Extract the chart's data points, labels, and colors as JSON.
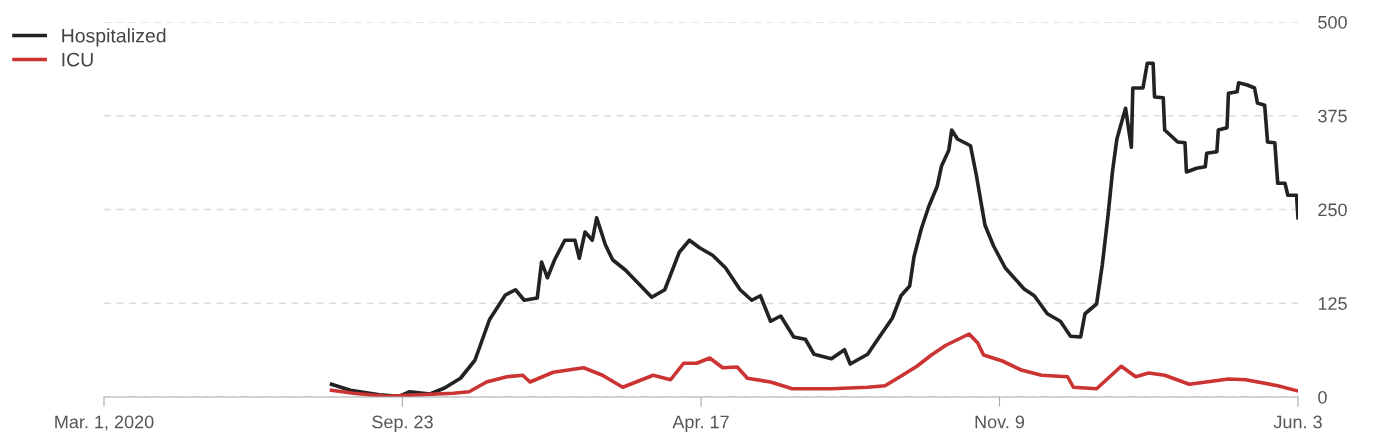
{
  "chart_data": {
    "type": "line",
    "xlim": [
      "2020-03-01",
      "2022-06-03"
    ],
    "xticks": [
      {
        "value": "2020-03-01",
        "label": "Mar. 1, 2020"
      },
      {
        "value": "2020-09-23",
        "label": "Sep. 23"
      },
      {
        "value": "2021-04-17",
        "label": "Apr. 17"
      },
      {
        "value": "2021-11-09",
        "label": "Nov. 9"
      },
      {
        "value": "2022-06-03",
        "label": "Jun. 3"
      }
    ],
    "ylim": [
      0,
      500
    ],
    "yticks": [
      0,
      125,
      250,
      375,
      500
    ],
    "grid": "y",
    "legend": "top left",
    "marker": "none",
    "line_style": "solid",
    "series": [
      {
        "name": "Hospitalized",
        "color": "#222222",
        "x": [
          "2020-08-05",
          "2020-08-18",
          "2020-09-07",
          "2020-09-21",
          "2020-09-28",
          "2020-10-12",
          "2020-10-22",
          "2020-11-02",
          "2020-11-12",
          "2020-11-22",
          "2020-12-03",
          "2020-12-10",
          "2020-12-16",
          "2020-12-25",
          "2020-12-28",
          "2021-01-01",
          "2021-01-06",
          "2021-01-13",
          "2021-01-20",
          "2021-01-23",
          "2021-01-27",
          "2021-02-01",
          "2021-02-04",
          "2021-02-10",
          "2021-02-15",
          "2021-02-24",
          "2021-03-06",
          "2021-03-14",
          "2021-03-23",
          "2021-04-02",
          "2021-04-09",
          "2021-04-16",
          "2021-04-25",
          "2021-05-04",
          "2021-05-14",
          "2021-05-22",
          "2021-05-28",
          "2021-06-04",
          "2021-06-11",
          "2021-06-20",
          "2021-06-28",
          "2021-07-04",
          "2021-07-16",
          "2021-07-25",
          "2021-07-29",
          "2021-08-10",
          "2021-08-17",
          "2021-08-27",
          "2021-09-02",
          "2021-09-08",
          "2021-09-11",
          "2021-09-16",
          "2021-09-21",
          "2021-09-27",
          "2021-09-30",
          "2021-10-05",
          "2021-10-07",
          "2021-10-11",
          "2021-10-20",
          "2021-10-24",
          "2021-10-30",
          "2021-11-05",
          "2021-11-13",
          "2021-11-26",
          "2021-12-03",
          "2021-12-12",
          "2021-12-21",
          "2021-12-28",
          "2022-01-04",
          "2022-01-07",
          "2022-01-15",
          "2022-01-19",
          "2022-01-23",
          "2022-01-26",
          "2022-01-29",
          "2022-02-04",
          "2022-02-08",
          "2022-02-09",
          "2022-02-16",
          "2022-02-19",
          "2022-02-23",
          "2022-02-24",
          "2022-03-02",
          "2022-03-03",
          "2022-03-12",
          "2022-03-17",
          "2022-03-18",
          "2022-03-25",
          "2022-03-31",
          "2022-04-01",
          "2022-04-08",
          "2022-04-09",
          "2022-04-15",
          "2022-04-16",
          "2022-04-22",
          "2022-04-23",
          "2022-04-29",
          "2022-05-04",
          "2022-05-06",
          "2022-05-11",
          "2022-05-13",
          "2022-05-18",
          "2022-05-20",
          "2022-05-25",
          "2022-05-27",
          "2022-06-02",
          "2022-06-03"
        ],
        "values": [
          17,
          9,
          3,
          1,
          7,
          4,
          12,
          25,
          49,
          103,
          136,
          143,
          129,
          132,
          180,
          159,
          183,
          209,
          209,
          185,
          220,
          209,
          239,
          203,
          183,
          169,
          149,
          133,
          143,
          193,
          209,
          199,
          189,
          172,
          143,
          129,
          135,
          101,
          108,
          80,
          77,
          57,
          51,
          63,
          44,
          57,
          77,
          105,
          135,
          148,
          187,
          224,
          253,
          281,
          308,
          329,
          356,
          344,
          335,
          296,
          229,
          201,
          172,
          144,
          135,
          111,
          101,
          81,
          80,
          111,
          124,
          177,
          244,
          301,
          344,
          385,
          333,
          412,
          412,
          445,
          445,
          400,
          399,
          356,
          340,
          339,
          300,
          305,
          307,
          325,
          327,
          356,
          359,
          405,
          407,
          419,
          416,
          412,
          392,
          389,
          340,
          339,
          285,
          285,
          269,
          269,
          239
        ]
      },
      {
        "name": "ICU",
        "color": "#cc3333",
        "x": [
          "2020-08-05",
          "2020-08-20",
          "2020-09-12",
          "2020-10-05",
          "2020-10-28",
          "2020-11-08",
          "2020-11-20",
          "2020-12-04",
          "2020-12-15",
          "2020-12-20",
          "2021-01-05",
          "2021-01-26",
          "2021-02-08",
          "2021-02-22",
          "2021-03-15",
          "2021-03-27",
          "2021-04-05",
          "2021-04-14",
          "2021-04-23",
          "2021-05-02",
          "2021-05-12",
          "2021-05-19",
          "2021-06-04",
          "2021-06-19",
          "2021-07-16",
          "2021-08-10",
          "2021-08-22",
          "2021-09-03",
          "2021-09-13",
          "2021-09-23",
          "2021-10-03",
          "2021-10-19",
          "2021-10-25",
          "2021-10-29",
          "2021-11-11",
          "2021-11-24",
          "2021-12-08",
          "2021-12-26",
          "2021-12-30",
          "2022-01-15",
          "2022-02-01",
          "2022-02-11",
          "2022-02-20",
          "2022-03-03",
          "2022-03-20",
          "2022-04-16",
          "2022-04-28",
          "2022-05-20",
          "2022-06-03"
        ],
        "values": [
          9,
          5,
          1,
          3,
          5,
          7,
          20,
          27,
          29,
          20,
          33,
          39,
          29,
          13,
          29,
          23,
          45,
          45,
          52,
          39,
          40,
          25,
          20,
          11,
          11,
          13,
          15,
          29,
          41,
          56,
          69,
          84,
          72,
          56,
          48,
          36,
          29,
          27,
          13,
          11,
          41,
          27,
          32,
          29,
          17,
          24,
          23,
          15,
          8
        ]
      }
    ]
  }
}
